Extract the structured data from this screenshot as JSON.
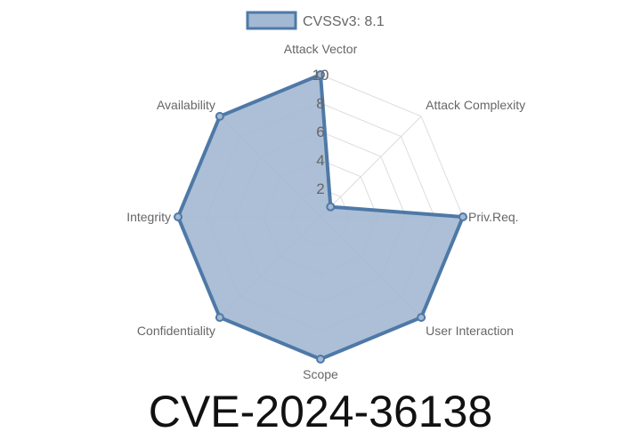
{
  "chart_data": {
    "type": "radar",
    "title": "CVE-2024-36138",
    "legend": {
      "position": "top",
      "entries": [
        "CVSSv3: 8.1"
      ]
    },
    "axes": [
      "Attack Vector",
      "Attack Complexity",
      "Priv.Req.",
      "User Interaction",
      "Scope",
      "Confidentiality",
      "Integrity",
      "Availability"
    ],
    "series": [
      {
        "name": "CVSSv3: 8.1",
        "values": [
          10,
          1,
          10,
          10,
          10,
          10,
          10,
          10
        ]
      }
    ],
    "r_range": [
      0,
      10
    ],
    "r_ticks": [
      "2",
      "4",
      "6",
      "8",
      "10"
    ],
    "grid": true,
    "colors": {
      "line": "#4e79a7",
      "fill": "#a3b8d3",
      "grid": "#dddddd"
    }
  }
}
